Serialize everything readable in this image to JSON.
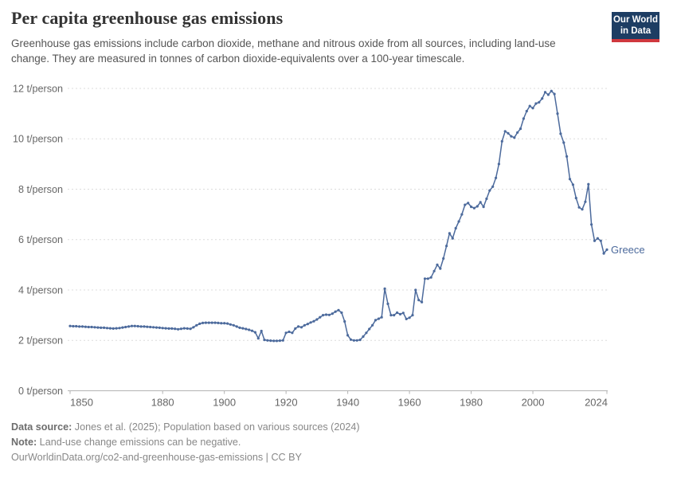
{
  "header": {
    "title": "Per capita greenhouse gas emissions",
    "subtitle": "Greenhouse gas emissions include carbon dioxide, methane and nitrous oxide from all sources, including land-use change. They are measured in tonnes of carbon dioxide-equivalents over a 100-year timescale.",
    "logo": {
      "line1": "Our World",
      "line2": "in Data",
      "bg_color": "#1d3d63",
      "accent_color": "#d0383e"
    }
  },
  "chart_data": {
    "type": "line",
    "title": "Per capita greenhouse gas emissions",
    "xlabel": "",
    "ylabel": "t/person",
    "xlim": [
      1850,
      2024
    ],
    "ylim": [
      0,
      12
    ],
    "grid": "horizontal-dashed",
    "legend_position": "end-of-line-label",
    "x_ticks": [
      {
        "value": 1850,
        "label": "1850"
      },
      {
        "value": 1880,
        "label": "1880"
      },
      {
        "value": 1900,
        "label": "1900"
      },
      {
        "value": 1920,
        "label": "1920"
      },
      {
        "value": 1940,
        "label": "1940"
      },
      {
        "value": 1960,
        "label": "1960"
      },
      {
        "value": 1980,
        "label": "1980"
      },
      {
        "value": 2000,
        "label": "2000"
      },
      {
        "value": 2024,
        "label": "2024"
      }
    ],
    "y_ticks": [
      {
        "value": 0,
        "label": "0 t/person"
      },
      {
        "value": 2,
        "label": "2 t/person"
      },
      {
        "value": 4,
        "label": "4 t/person"
      },
      {
        "value": 6,
        "label": "6 t/person"
      },
      {
        "value": 8,
        "label": "8 t/person"
      },
      {
        "value": 10,
        "label": "10 t/person"
      },
      {
        "value": 12,
        "label": "12 t/person"
      }
    ],
    "series": [
      {
        "name": "Greece",
        "color": "#4c6a9c",
        "x": [
          1850,
          1851,
          1852,
          1853,
          1854,
          1855,
          1856,
          1857,
          1858,
          1859,
          1860,
          1861,
          1862,
          1863,
          1864,
          1865,
          1866,
          1867,
          1868,
          1869,
          1870,
          1871,
          1872,
          1873,
          1874,
          1875,
          1876,
          1877,
          1878,
          1879,
          1880,
          1881,
          1882,
          1883,
          1884,
          1885,
          1886,
          1887,
          1888,
          1889,
          1890,
          1891,
          1892,
          1893,
          1894,
          1895,
          1896,
          1897,
          1898,
          1899,
          1900,
          1901,
          1902,
          1903,
          1904,
          1905,
          1906,
          1907,
          1908,
          1909,
          1910,
          1911,
          1912,
          1913,
          1914,
          1915,
          1916,
          1917,
          1918,
          1919,
          1920,
          1921,
          1922,
          1923,
          1924,
          1925,
          1926,
          1927,
          1928,
          1929,
          1930,
          1931,
          1932,
          1933,
          1934,
          1935,
          1936,
          1937,
          1938,
          1939,
          1940,
          1941,
          1942,
          1943,
          1944,
          1945,
          1946,
          1947,
          1948,
          1949,
          1950,
          1951,
          1952,
          1953,
          1954,
          1955,
          1956,
          1957,
          1958,
          1959,
          1960,
          1961,
          1962,
          1963,
          1964,
          1965,
          1966,
          1967,
          1968,
          1969,
          1970,
          1971,
          1972,
          1973,
          1974,
          1975,
          1976,
          1977,
          1978,
          1979,
          1980,
          1981,
          1982,
          1983,
          1984,
          1985,
          1986,
          1987,
          1988,
          1989,
          1990,
          1991,
          1992,
          1993,
          1994,
          1995,
          1996,
          1997,
          1998,
          1999,
          2000,
          2001,
          2002,
          2003,
          2004,
          2005,
          2006,
          2007,
          2008,
          2009,
          2010,
          2011,
          2012,
          2013,
          2014,
          2015,
          2016,
          2017,
          2018,
          2019,
          2020,
          2021,
          2022,
          2023,
          2024
        ],
        "values": [
          2.57,
          2.56,
          2.56,
          2.55,
          2.55,
          2.54,
          2.53,
          2.53,
          2.52,
          2.51,
          2.5,
          2.5,
          2.49,
          2.48,
          2.47,
          2.48,
          2.49,
          2.51,
          2.53,
          2.55,
          2.57,
          2.57,
          2.56,
          2.55,
          2.55,
          2.54,
          2.53,
          2.52,
          2.51,
          2.5,
          2.49,
          2.48,
          2.47,
          2.47,
          2.46,
          2.44,
          2.46,
          2.48,
          2.47,
          2.46,
          2.52,
          2.6,
          2.66,
          2.69,
          2.7,
          2.7,
          2.7,
          2.7,
          2.69,
          2.68,
          2.68,
          2.67,
          2.63,
          2.6,
          2.55,
          2.5,
          2.48,
          2.45,
          2.42,
          2.38,
          2.32,
          2.08,
          2.37,
          2.02,
          2.0,
          1.99,
          1.98,
          1.98,
          1.99,
          2.0,
          2.3,
          2.34,
          2.3,
          2.47,
          2.55,
          2.52,
          2.6,
          2.65,
          2.71,
          2.76,
          2.83,
          2.92,
          3.0,
          3.02,
          3.01,
          3.06,
          3.14,
          3.2,
          3.1,
          2.75,
          2.2,
          2.03,
          2.0,
          2.0,
          2.02,
          2.15,
          2.3,
          2.45,
          2.6,
          2.8,
          2.86,
          2.92,
          4.05,
          3.45,
          3.0,
          3.0,
          3.1,
          3.04,
          3.09,
          2.85,
          2.9,
          3.0,
          4.0,
          3.6,
          3.52,
          4.45,
          4.45,
          4.5,
          4.75,
          5.0,
          4.85,
          5.25,
          5.75,
          6.25,
          6.05,
          6.45,
          6.72,
          7.0,
          7.38,
          7.45,
          7.3,
          7.25,
          7.32,
          7.48,
          7.3,
          7.62,
          7.95,
          8.1,
          8.45,
          9.0,
          9.9,
          10.3,
          10.22,
          10.1,
          10.05,
          10.25,
          10.4,
          10.8,
          11.1,
          11.3,
          11.22,
          11.4,
          11.45,
          11.6,
          11.85,
          11.75,
          11.9,
          11.78,
          11.0,
          10.2,
          9.85,
          9.3,
          8.4,
          8.18,
          7.65,
          7.28,
          7.2,
          7.5,
          8.2,
          6.6,
          5.95,
          6.05,
          5.95,
          5.45,
          5.6
        ]
      }
    ]
  },
  "footer": {
    "data_source_label": "Data source:",
    "data_source": " Jones et al. (2025); Population based on various sources (2024)",
    "note_label": "Note:",
    "note": " Land-use change emissions can be negative.",
    "url": "OurWorldinData.org/co2-and-greenhouse-gas-emissions",
    "separator": " | ",
    "license": "CC BY"
  }
}
